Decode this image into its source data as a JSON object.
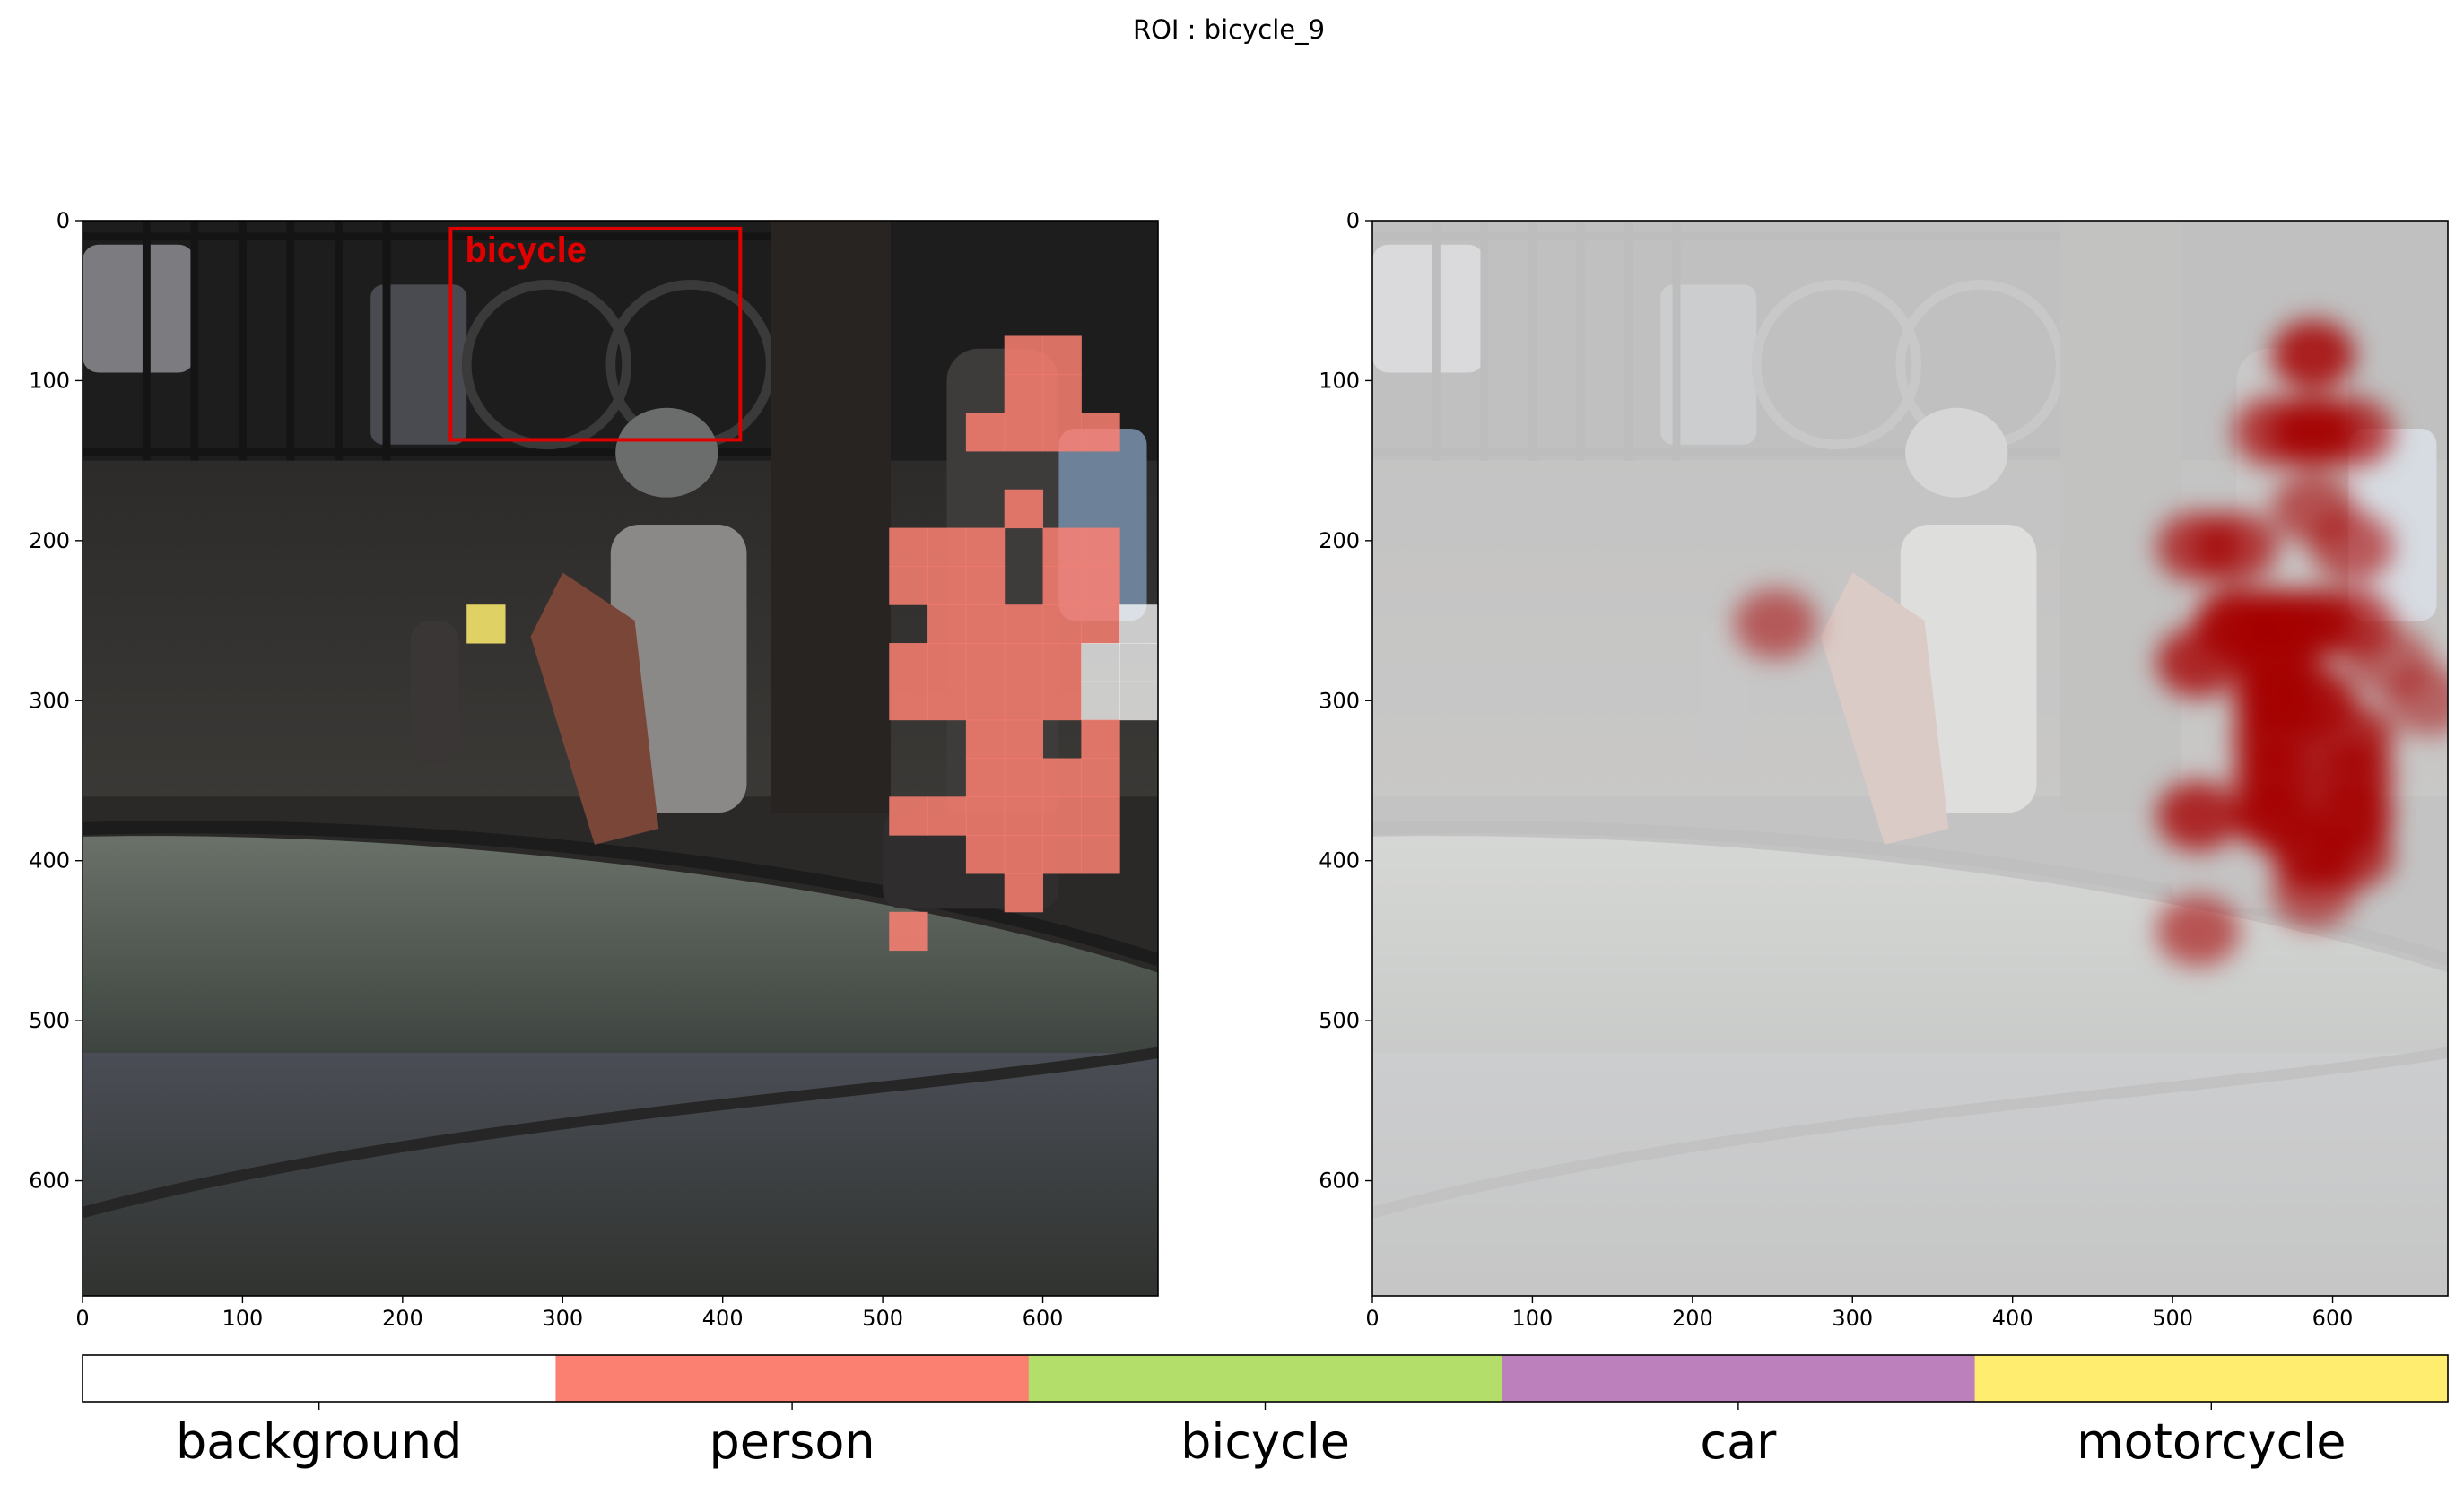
{
  "figure": {
    "title": "ROI : bicycle_9"
  },
  "colors": {
    "person": "#fb8072",
    "bicycle": "#b3de69",
    "car": "#bc80bd",
    "motorcycle": "#ffed6f",
    "background": "#ffffff",
    "roi_box": "#e00000",
    "heatmap": "#a50000"
  },
  "chart_data": [
    {
      "type": "heatmap",
      "panel": "left",
      "description_role": "per-patch class assignment overlaid on photo",
      "xlim": [
        0,
        672
      ],
      "ylim": [
        672,
        0
      ],
      "xticks": [
        0,
        100,
        200,
        300,
        400,
        500,
        600
      ],
      "yticks": [
        0,
        100,
        200,
        300,
        400,
        500,
        600
      ],
      "roi_box": {
        "label": "bicycle",
        "x0": 230,
        "y0": 5,
        "x1": 411,
        "y1": 137
      },
      "patch_size": 24,
      "patches": [
        {
          "x": 576,
          "y": 72,
          "cls": "person"
        },
        {
          "x": 600,
          "y": 72,
          "cls": "person"
        },
        {
          "x": 576,
          "y": 96,
          "cls": "person"
        },
        {
          "x": 600,
          "y": 96,
          "cls": "person"
        },
        {
          "x": 552,
          "y": 120,
          "cls": "person"
        },
        {
          "x": 576,
          "y": 120,
          "cls": "person"
        },
        {
          "x": 600,
          "y": 120,
          "cls": "person"
        },
        {
          "x": 624,
          "y": 120,
          "cls": "person"
        },
        {
          "x": 576,
          "y": 168,
          "cls": "person"
        },
        {
          "x": 504,
          "y": 192,
          "cls": "person"
        },
        {
          "x": 528,
          "y": 192,
          "cls": "person"
        },
        {
          "x": 552,
          "y": 192,
          "cls": "person"
        },
        {
          "x": 600,
          "y": 192,
          "cls": "person"
        },
        {
          "x": 624,
          "y": 192,
          "cls": "person"
        },
        {
          "x": 504,
          "y": 216,
          "cls": "person"
        },
        {
          "x": 528,
          "y": 216,
          "cls": "person"
        },
        {
          "x": 552,
          "y": 216,
          "cls": "person"
        },
        {
          "x": 600,
          "y": 216,
          "cls": "person"
        },
        {
          "x": 624,
          "y": 216,
          "cls": "person"
        },
        {
          "x": 240,
          "y": 240,
          "cls": "motorcycle"
        },
        {
          "x": 528,
          "y": 240,
          "cls": "person"
        },
        {
          "x": 552,
          "y": 240,
          "cls": "person"
        },
        {
          "x": 576,
          "y": 240,
          "cls": "person"
        },
        {
          "x": 600,
          "y": 240,
          "cls": "person"
        },
        {
          "x": 624,
          "y": 240,
          "cls": "person"
        },
        {
          "x": 648,
          "y": 240,
          "cls": "background"
        },
        {
          "x": 504,
          "y": 264,
          "cls": "person"
        },
        {
          "x": 528,
          "y": 264,
          "cls": "person"
        },
        {
          "x": 552,
          "y": 264,
          "cls": "person"
        },
        {
          "x": 576,
          "y": 264,
          "cls": "person"
        },
        {
          "x": 600,
          "y": 264,
          "cls": "person"
        },
        {
          "x": 624,
          "y": 264,
          "cls": "background"
        },
        {
          "x": 648,
          "y": 264,
          "cls": "background"
        },
        {
          "x": 504,
          "y": 288,
          "cls": "person"
        },
        {
          "x": 528,
          "y": 288,
          "cls": "person"
        },
        {
          "x": 552,
          "y": 288,
          "cls": "person"
        },
        {
          "x": 576,
          "y": 288,
          "cls": "person"
        },
        {
          "x": 600,
          "y": 288,
          "cls": "person"
        },
        {
          "x": 624,
          "y": 288,
          "cls": "background"
        },
        {
          "x": 648,
          "y": 288,
          "cls": "background"
        },
        {
          "x": 672,
          "y": 288,
          "cls": "background"
        },
        {
          "x": 552,
          "y": 312,
          "cls": "person"
        },
        {
          "x": 576,
          "y": 312,
          "cls": "person"
        },
        {
          "x": 624,
          "y": 312,
          "cls": "person"
        },
        {
          "x": 552,
          "y": 336,
          "cls": "person"
        },
        {
          "x": 576,
          "y": 336,
          "cls": "person"
        },
        {
          "x": 600,
          "y": 336,
          "cls": "person"
        },
        {
          "x": 624,
          "y": 336,
          "cls": "person"
        },
        {
          "x": 504,
          "y": 360,
          "cls": "person"
        },
        {
          "x": 528,
          "y": 360,
          "cls": "person"
        },
        {
          "x": 552,
          "y": 360,
          "cls": "person"
        },
        {
          "x": 576,
          "y": 360,
          "cls": "person"
        },
        {
          "x": 600,
          "y": 360,
          "cls": "person"
        },
        {
          "x": 624,
          "y": 360,
          "cls": "person"
        },
        {
          "x": 552,
          "y": 384,
          "cls": "person"
        },
        {
          "x": 576,
          "y": 384,
          "cls": "person"
        },
        {
          "x": 600,
          "y": 384,
          "cls": "person"
        },
        {
          "x": 624,
          "y": 384,
          "cls": "person"
        },
        {
          "x": 576,
          "y": 408,
          "cls": "person"
        },
        {
          "x": 504,
          "y": 432,
          "cls": "person"
        }
      ]
    },
    {
      "type": "heatmap",
      "panel": "right",
      "description_role": "attention heatmap for ROI overlaid on photo",
      "xlim": [
        0,
        672
      ],
      "ylim": [
        672,
        0
      ],
      "xticks": [
        0,
        100,
        200,
        300,
        400,
        500,
        600
      ],
      "yticks": [
        0,
        100,
        200,
        300,
        400,
        500,
        600
      ],
      "hotspots": [
        {
          "x": 588,
          "y": 84,
          "intensity": 0.85
        },
        {
          "x": 588,
          "y": 132,
          "intensity": 0.9
        },
        {
          "x": 612,
          "y": 132,
          "intensity": 0.7
        },
        {
          "x": 564,
          "y": 132,
          "intensity": 0.7
        },
        {
          "x": 588,
          "y": 180,
          "intensity": 0.6
        },
        {
          "x": 516,
          "y": 204,
          "intensity": 0.7
        },
        {
          "x": 540,
          "y": 204,
          "intensity": 0.7
        },
        {
          "x": 612,
          "y": 204,
          "intensity": 0.6
        },
        {
          "x": 540,
          "y": 252,
          "intensity": 0.95
        },
        {
          "x": 564,
          "y": 252,
          "intensity": 0.95
        },
        {
          "x": 588,
          "y": 252,
          "intensity": 0.9
        },
        {
          "x": 612,
          "y": 252,
          "intensity": 0.7
        },
        {
          "x": 516,
          "y": 276,
          "intensity": 0.8
        },
        {
          "x": 564,
          "y": 276,
          "intensity": 0.95
        },
        {
          "x": 636,
          "y": 276,
          "intensity": 0.5
        },
        {
          "x": 564,
          "y": 300,
          "intensity": 0.95
        },
        {
          "x": 588,
          "y": 300,
          "intensity": 0.9
        },
        {
          "x": 660,
          "y": 300,
          "intensity": 0.5
        },
        {
          "x": 564,
          "y": 324,
          "intensity": 0.9
        },
        {
          "x": 612,
          "y": 324,
          "intensity": 0.8
        },
        {
          "x": 564,
          "y": 348,
          "intensity": 0.9
        },
        {
          "x": 612,
          "y": 348,
          "intensity": 0.85
        },
        {
          "x": 516,
          "y": 372,
          "intensity": 0.8
        },
        {
          "x": 564,
          "y": 372,
          "intensity": 0.95
        },
        {
          "x": 612,
          "y": 372,
          "intensity": 0.9
        },
        {
          "x": 588,
          "y": 396,
          "intensity": 0.9
        },
        {
          "x": 612,
          "y": 396,
          "intensity": 0.75
        },
        {
          "x": 588,
          "y": 420,
          "intensity": 0.6
        },
        {
          "x": 516,
          "y": 444,
          "intensity": 0.6
        },
        {
          "x": 252,
          "y": 252,
          "intensity": 0.55
        }
      ]
    }
  ],
  "legend": {
    "type": "colorbar",
    "categories": [
      "background",
      "person",
      "bicycle",
      "car",
      "motorcycle"
    ]
  }
}
